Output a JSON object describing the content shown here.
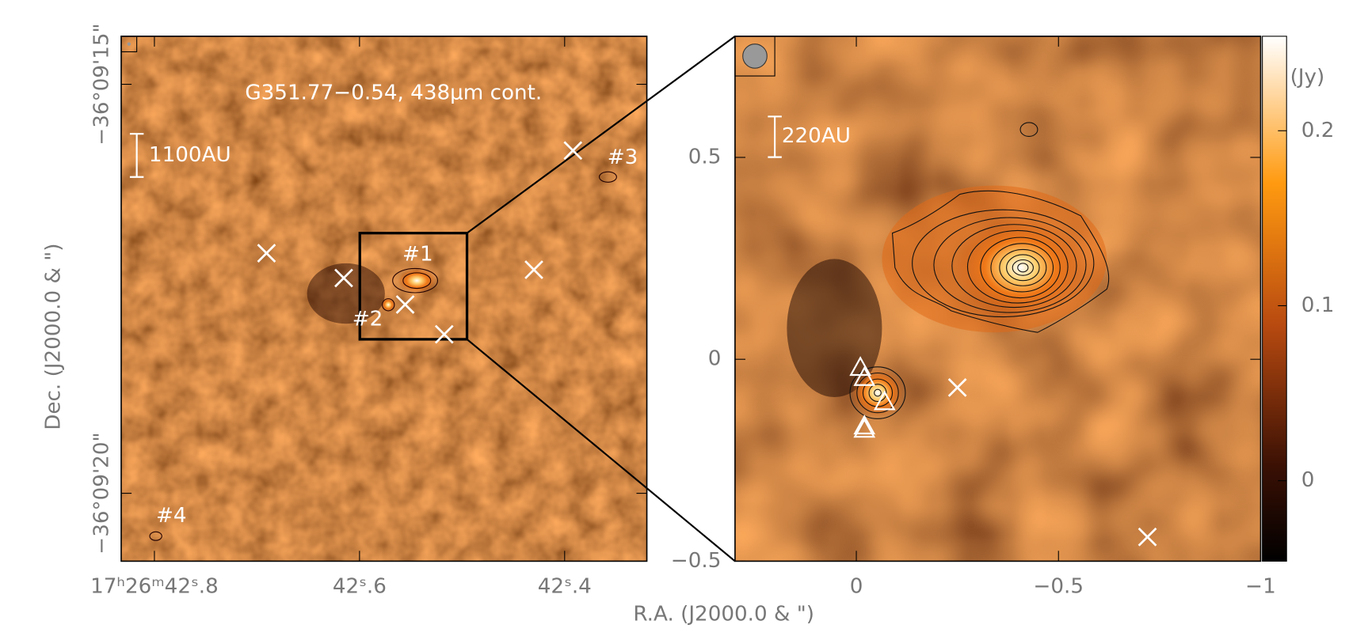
{
  "left_panel": {
    "title": "G351.77−0.54, 438μm cont.",
    "scale_bar": "1100AU",
    "xlim": [
      3.17,
      -3.16
    ],
    "ylim": [
      -3.16,
      3.18
    ],
    "xticks": [
      {
        "value": 2.77,
        "label": "17ʰ26ᵐ42ˢ.8"
      },
      {
        "value": 0.3,
        "label": "42ˢ.6"
      },
      {
        "value": -2.17,
        "label": "42ˢ.4"
      }
    ],
    "yticks": [
      {
        "value": -2.34,
        "label": "−36°09'20\""
      },
      {
        "value": 2.6,
        "label": "−36°09'15\""
      }
    ],
    "crosses": {
      "x": [
        1.42,
        0.49,
        -0.25,
        -0.72,
        -1.8,
        -2.27
      ],
      "y": [
        0.56,
        0.26,
        -0.06,
        -0.42,
        0.36,
        1.8
      ]
    },
    "source_labels": [
      "#1",
      "#2",
      "#3",
      "#4"
    ]
  },
  "right_panel": {
    "scale_bar": "220AU",
    "xlim": [
      0.3,
      -1
    ],
    "ylim": [
      -0.5,
      0.8
    ],
    "xticks": [
      0,
      {
        "value": -0.5,
        "label": "−0.5"
      },
      {
        "value": -1,
        "label": "−1"
      }
    ],
    "yticks": [
      {
        "value": -0.5,
        "label": "−0.5"
      },
      0,
      0.5
    ],
    "crosses": {
      "x": [
        -0.25,
        -0.72
      ],
      "y": [
        -0.07,
        -0.44
      ]
    },
    "triangles": {
      "x": [
        -0.01,
        -0.02,
        -0.07,
        -0.02,
        -0.02
      ],
      "y": [
        -0.02,
        -0.045,
        -0.105,
        -0.165,
        -0.173
      ]
    }
  },
  "colorbar": {
    "label": "(Jy)",
    "lim": [
      -0.046,
      0.254
    ],
    "ticks": [
      0,
      0.1,
      0.2
    ]
  },
  "x_axis_label": "R.A. (J2000.0 & \")",
  "y_axis_label": "Dec. (J2000.0 & \")"
}
